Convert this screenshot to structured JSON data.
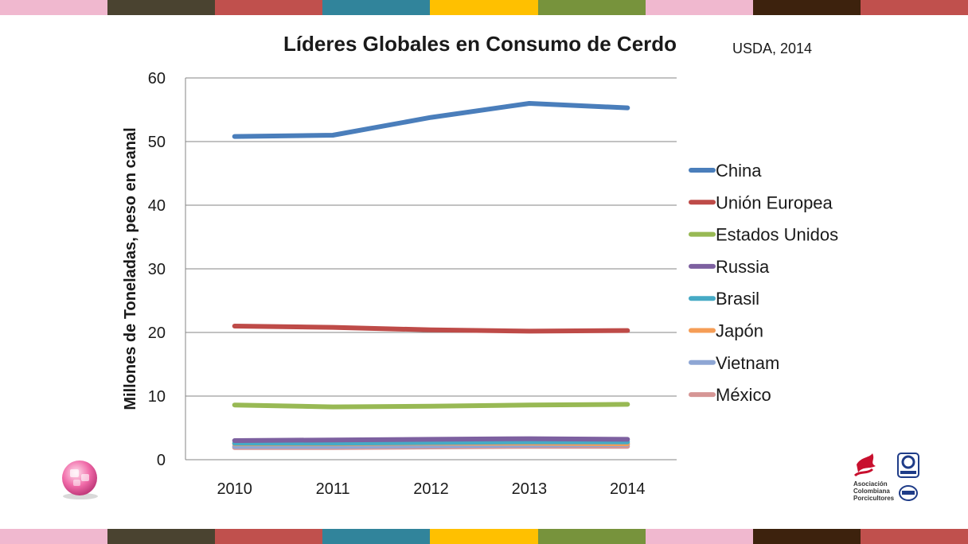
{
  "stripe_colors": [
    "#f0b8cf",
    "#4a4330",
    "#c0504d",
    "#31849b",
    "#ffc000",
    "#77933c",
    "#f0b8cf",
    "#3d220d",
    "#c0504d"
  ],
  "chart_data": {
    "type": "line",
    "title": "Líderes Globales en Consumo de Cerdo",
    "source": "USDA, 2014",
    "xlabel": "",
    "ylabel": "Millones de Toneladas, peso en canal",
    "categories": [
      "2010",
      "2011",
      "2012",
      "2013",
      "2014"
    ],
    "ylim": [
      0,
      60
    ],
    "yticks": [
      "0",
      "10",
      "20",
      "30",
      "40",
      "50",
      "60"
    ],
    "grid": true,
    "legend_position": "right",
    "series": [
      {
        "name": "China",
        "color": "#4a7ebb",
        "values": [
          50.8,
          51.0,
          53.8,
          56.0,
          55.3
        ]
      },
      {
        "name": "Unión Europea",
        "color": "#be4b48",
        "values": [
          21.0,
          20.8,
          20.4,
          20.2,
          20.3
        ]
      },
      {
        "name": "Estados Unidos",
        "color": "#98b954",
        "values": [
          8.6,
          8.3,
          8.4,
          8.6,
          8.7
        ]
      },
      {
        "name": "Russia",
        "color": "#7d60a0",
        "values": [
          3.0,
          3.1,
          3.2,
          3.3,
          3.2
        ]
      },
      {
        "name": "Brasil",
        "color": "#46aac5",
        "values": [
          2.6,
          2.6,
          2.7,
          2.8,
          2.8
        ]
      },
      {
        "name": "Japón",
        "color": "#f59d56",
        "values": [
          2.5,
          2.5,
          2.6,
          2.6,
          2.5
        ]
      },
      {
        "name": "Vietnam",
        "color": "#8ea6d4",
        "values": [
          2.1,
          2.1,
          2.2,
          2.3,
          2.4
        ]
      },
      {
        "name": "México",
        "color": "#d69695",
        "values": [
          1.9,
          1.9,
          2.0,
          2.1,
          2.1
        ]
      }
    ]
  },
  "logos": {
    "left_icon": "pink-sphere-icon",
    "right_icon": "association-logo-icon",
    "org_lines": [
      "Asociación",
      "Colombiana",
      "Porcicultores"
    ]
  }
}
